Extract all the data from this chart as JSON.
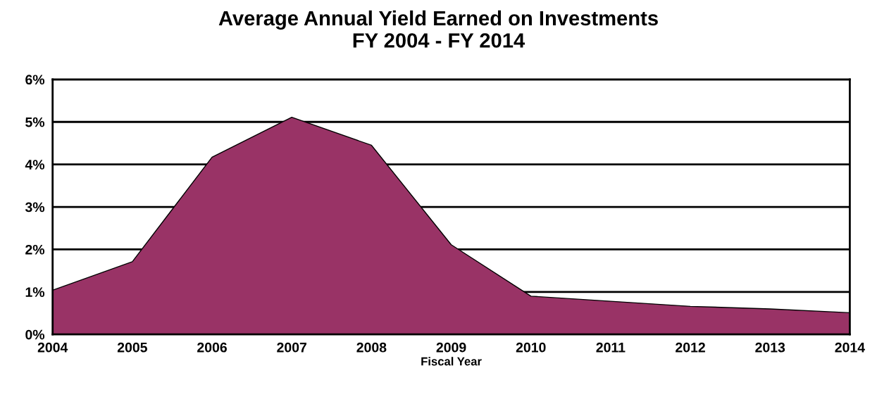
{
  "chart_data": {
    "type": "area",
    "title": "Average Annual Yield Earned on Investments\nFY 2004 - FY 2014",
    "xlabel": "Fiscal Year",
    "categories": [
      "2004",
      "2005",
      "2006",
      "2007",
      "2008",
      "2009",
      "2010",
      "2011",
      "2012",
      "2013",
      "2014"
    ],
    "series": [
      {
        "color": "#993366",
        "values": [
          1.04,
          1.71,
          4.17,
          5.11,
          4.45,
          2.11,
          0.9,
          0.78,
          0.66,
          0.6,
          0.51
        ]
      }
    ],
    "ylim": [
      0,
      6
    ],
    "yticks": [
      {
        "value": 0,
        "label": "0%"
      },
      {
        "value": 1,
        "label": "1%"
      },
      {
        "value": 2,
        "label": "2%"
      },
      {
        "value": 3,
        "label": "3%"
      },
      {
        "value": 4,
        "label": "4%"
      },
      {
        "value": 5,
        "label": "5%"
      },
      {
        "value": 6,
        "label": "6%"
      }
    ],
    "grid": "y",
    "legend": false
  }
}
